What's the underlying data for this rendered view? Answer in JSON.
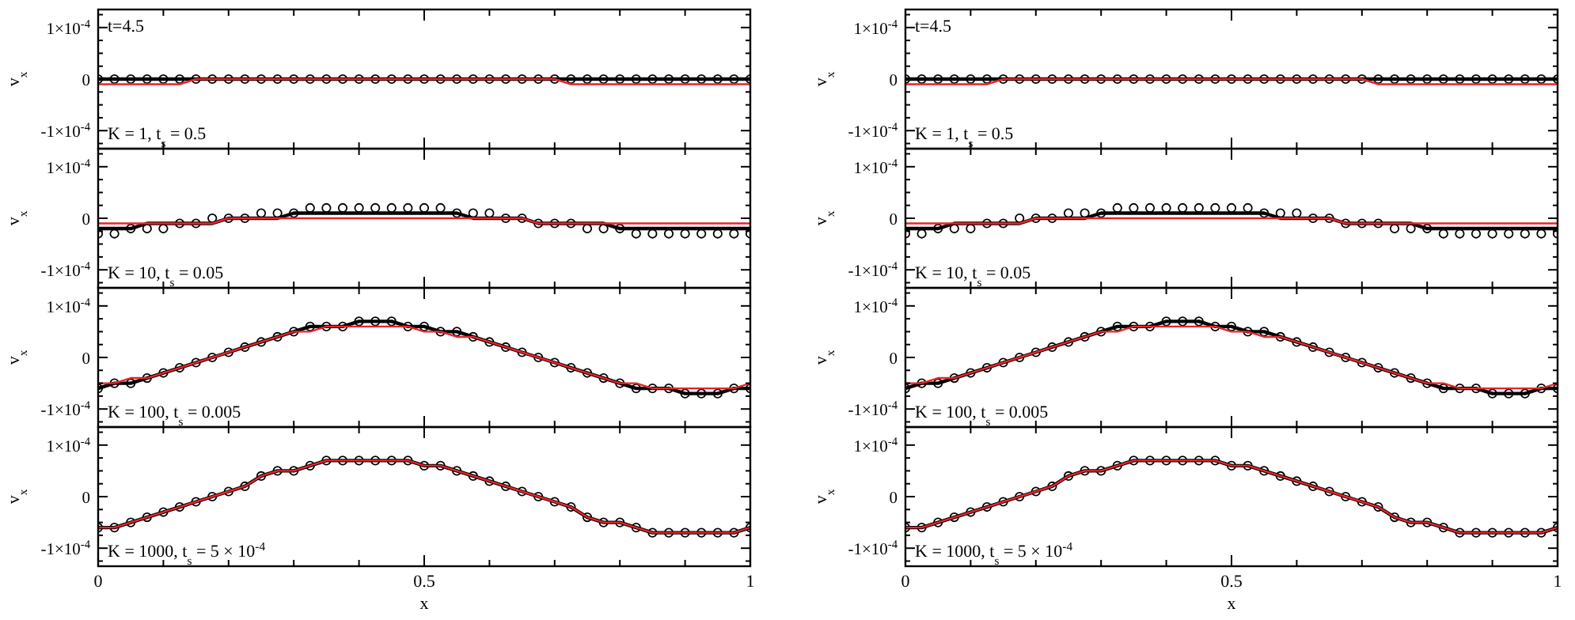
{
  "chart_data": [
    {
      "type": "line",
      "ylabel": "v$_{x}$",
      "annotations": [
        "t=4.5",
        "K = 1, t$_{s}$ = 0.5"
      ],
      "tick_labels": "y",
      "xlim": [
        0,
        1
      ],
      "ylim": [
        -0.000135,
        0.000135
      ],
      "xticks": [
        0,
        {
          "value": 0.1,
          "label": null
        },
        {
          "value": 0.2,
          "label": null
        },
        {
          "value": 0.3,
          "label": null
        },
        {
          "value": 0.4,
          "label": null
        },
        0.5,
        {
          "value": 0.6,
          "label": null
        },
        {
          "value": 0.7,
          "label": null
        },
        {
          "value": 0.8,
          "label": null
        },
        {
          "value": 0.9,
          "label": null
        },
        1
      ],
      "yticks": [
        {
          "value": -0.000125,
          "label": null
        },
        {
          "value": -0.0001,
          "label": "-1×10$^{-4}$"
        },
        {
          "value": -7.5e-05,
          "label": null
        },
        {
          "value": -5e-05,
          "label": null
        },
        {
          "value": -2.5e-05,
          "label": null
        },
        {
          "value": 0,
          "label": "0"
        },
        {
          "value": 2.5e-05,
          "label": null
        },
        {
          "value": 5e-05,
          "label": null
        },
        {
          "value": 7.5e-05,
          "label": null
        },
        {
          "value": 0.0001,
          "label": "1×10$^{-4}$"
        },
        {
          "value": 0.000125,
          "label": null
        }
      ],
      "x": [
        0,
        0.025,
        0.05,
        0.075,
        0.1,
        0.125,
        0.15,
        0.175,
        0.2,
        0.225,
        0.25,
        0.275,
        0.3,
        0.325,
        0.35,
        0.375,
        0.4,
        0.425,
        0.45,
        0.475,
        0.5,
        0.525,
        0.55,
        0.575,
        0.6,
        0.625,
        0.65,
        0.675,
        0.7,
        0.725,
        0.75,
        0.775,
        0.8,
        0.825,
        0.85,
        0.875,
        0.9,
        0.925,
        0.95,
        0.975,
        1
      ],
      "series": [
        {
          "type": "scatter",
          "marker": "circle",
          "color": "#000000",
          "values": [
            0,
            0,
            0,
            0,
            0,
            0,
            0,
            0,
            0,
            0,
            0,
            0,
            0,
            0,
            0,
            0,
            0,
            0,
            0,
            0,
            0,
            0,
            0,
            0,
            0,
            0,
            0,
            0,
            0,
            0,
            0,
            0,
            0,
            0,
            0,
            0,
            0,
            0,
            0,
            0,
            0
          ]
        },
        {
          "type": "line",
          "color": "#000000",
          "values": [
            0,
            0,
            0,
            0,
            0,
            0,
            0,
            0,
            0,
            0,
            0,
            0,
            0,
            0,
            0,
            0,
            0,
            0,
            0,
            0,
            0,
            0,
            0,
            0,
            0,
            0,
            0,
            0,
            0,
            0,
            0,
            0,
            0,
            0,
            0,
            0,
            0,
            0,
            0,
            0,
            0
          ]
        },
        {
          "type": "line",
          "color": "#e8242b",
          "values": [
            -1e-05,
            -1e-05,
            -1e-05,
            -1e-05,
            -1e-05,
            -1e-05,
            0,
            0,
            0,
            0,
            0,
            0,
            0,
            0,
            0,
            0,
            0,
            0,
            0,
            0,
            0,
            0,
            0,
            0,
            0,
            0,
            0,
            0,
            0,
            -1e-05,
            -1e-05,
            -1e-05,
            -1e-05,
            -1e-05,
            -1e-05,
            -1e-05,
            -1e-05,
            -1e-05,
            -1e-05,
            -1e-05,
            -1e-05
          ]
        }
      ]
    },
    {
      "type": "line",
      "ylabel": "v$_{x}$",
      "annotations": [
        "t=4.5",
        "K = 1, t$_{s}$ = 0.5"
      ],
      "tick_labels": "y",
      "xlim": [
        0,
        1
      ],
      "ylim": [
        -0.000135,
        0.000135
      ],
      "xticks": [
        0,
        {
          "value": 0.1,
          "label": null
        },
        {
          "value": 0.2,
          "label": null
        },
        {
          "value": 0.3,
          "label": null
        },
        {
          "value": 0.4,
          "label": null
        },
        0.5,
        {
          "value": 0.6,
          "label": null
        },
        {
          "value": 0.7,
          "label": null
        },
        {
          "value": 0.8,
          "label": null
        },
        {
          "value": 0.9,
          "label": null
        },
        1
      ],
      "yticks": [
        {
          "value": -0.000125,
          "label": null
        },
        {
          "value": -0.0001,
          "label": "-1×10$^{-4}$"
        },
        {
          "value": -7.5e-05,
          "label": null
        },
        {
          "value": -5e-05,
          "label": null
        },
        {
          "value": -2.5e-05,
          "label": null
        },
        {
          "value": 0,
          "label": "0"
        },
        {
          "value": 2.5e-05,
          "label": null
        },
        {
          "value": 5e-05,
          "label": null
        },
        {
          "value": 7.5e-05,
          "label": null
        },
        {
          "value": 0.0001,
          "label": "1×10$^{-4}$"
        },
        {
          "value": 0.000125,
          "label": null
        }
      ],
      "x": [
        0,
        0.025,
        0.05,
        0.075,
        0.1,
        0.125,
        0.15,
        0.175,
        0.2,
        0.225,
        0.25,
        0.275,
        0.3,
        0.325,
        0.35,
        0.375,
        0.4,
        0.425,
        0.45,
        0.475,
        0.5,
        0.525,
        0.55,
        0.575,
        0.6,
        0.625,
        0.65,
        0.675,
        0.7,
        0.725,
        0.75,
        0.775,
        0.8,
        0.825,
        0.85,
        0.875,
        0.9,
        0.925,
        0.95,
        0.975,
        1
      ],
      "series": [
        {
          "type": "scatter",
          "marker": "circle",
          "color": "#000000",
          "values": [
            0,
            0,
            0,
            0,
            0,
            0,
            0,
            0,
            0,
            0,
            0,
            0,
            0,
            0,
            0,
            0,
            0,
            0,
            0,
            0,
            0,
            0,
            0,
            0,
            0,
            0,
            0,
            0,
            0,
            0,
            0,
            0,
            0,
            0,
            0,
            0,
            0,
            0,
            0,
            0,
            0
          ]
        },
        {
          "type": "line",
          "color": "#000000",
          "values": [
            0,
            0,
            0,
            0,
            0,
            0,
            0,
            0,
            0,
            0,
            0,
            0,
            0,
            0,
            0,
            0,
            0,
            0,
            0,
            0,
            0,
            0,
            0,
            0,
            0,
            0,
            0,
            0,
            0,
            0,
            0,
            0,
            0,
            0,
            0,
            0,
            0,
            0,
            0,
            0,
            0
          ]
        },
        {
          "type": "line",
          "color": "#e8242b",
          "values": [
            -1e-05,
            -1e-05,
            -1e-05,
            -1e-05,
            -1e-05,
            -1e-05,
            0,
            0,
            0,
            0,
            0,
            0,
            0,
            0,
            0,
            0,
            0,
            0,
            0,
            0,
            0,
            0,
            0,
            0,
            0,
            0,
            0,
            0,
            0,
            -1e-05,
            -1e-05,
            -1e-05,
            -1e-05,
            -1e-05,
            -1e-05,
            -1e-05,
            -1e-05,
            -1e-05,
            -1e-05,
            -1e-05,
            -1e-05
          ]
        }
      ]
    },
    {
      "type": "line",
      "ylabel": "v$_{x}$",
      "annotations": [
        "K = 10, t$_{s}$ = 0.05"
      ],
      "tick_labels": "y",
      "xlim": [
        0,
        1
      ],
      "ylim": [
        -0.000135,
        0.000135
      ],
      "xticks": [
        0,
        {
          "value": 0.1,
          "label": null
        },
        {
          "value": 0.2,
          "label": null
        },
        {
          "value": 0.3,
          "label": null
        },
        {
          "value": 0.4,
          "label": null
        },
        0.5,
        {
          "value": 0.6,
          "label": null
        },
        {
          "value": 0.7,
          "label": null
        },
        {
          "value": 0.8,
          "label": null
        },
        {
          "value": 0.9,
          "label": null
        },
        1
      ],
      "yticks": [
        {
          "value": -0.000125,
          "label": null
        },
        {
          "value": -0.0001,
          "label": "-1×10$^{-4}$"
        },
        {
          "value": -7.5e-05,
          "label": null
        },
        {
          "value": -5e-05,
          "label": null
        },
        {
          "value": -2.5e-05,
          "label": null
        },
        {
          "value": 0,
          "label": "0"
        },
        {
          "value": 2.5e-05,
          "label": null
        },
        {
          "value": 5e-05,
          "label": null
        },
        {
          "value": 7.5e-05,
          "label": null
        },
        {
          "value": 0.0001,
          "label": "1×10$^{-4}$"
        },
        {
          "value": 0.000125,
          "label": null
        }
      ],
      "x": [
        0,
        0.025,
        0.05,
        0.075,
        0.1,
        0.125,
        0.15,
        0.175,
        0.2,
        0.225,
        0.25,
        0.275,
        0.3,
        0.325,
        0.35,
        0.375,
        0.4,
        0.425,
        0.45,
        0.475,
        0.5,
        0.525,
        0.55,
        0.575,
        0.6,
        0.625,
        0.65,
        0.675,
        0.7,
        0.725,
        0.75,
        0.775,
        0.8,
        0.825,
        0.85,
        0.875,
        0.9,
        0.925,
        0.95,
        0.975,
        1
      ],
      "series": [
        {
          "type": "scatter",
          "marker": "circle",
          "color": "#000000",
          "values": [
            -3e-05,
            -3e-05,
            -2e-05,
            -2e-05,
            -2e-05,
            -1e-05,
            -1e-05,
            0,
            0,
            0,
            1e-05,
            1e-05,
            1e-05,
            2e-05,
            2e-05,
            2e-05,
            2e-05,
            2e-05,
            2e-05,
            2e-05,
            2e-05,
            2e-05,
            1e-05,
            1e-05,
            1e-05,
            0,
            0,
            -1e-05,
            -1e-05,
            -1e-05,
            -2e-05,
            -2e-05,
            -2e-05,
            -3e-05,
            -3e-05,
            -3e-05,
            -3e-05,
            -3e-05,
            -3e-05,
            -3e-05,
            -3e-05
          ]
        },
        {
          "type": "line",
          "color": "#000000",
          "values": [
            -2e-05,
            -2e-05,
            -2e-05,
            -1e-05,
            -1e-05,
            -1e-05,
            -1e-05,
            -1e-05,
            0,
            0,
            0,
            0,
            1e-05,
            1e-05,
            1e-05,
            1e-05,
            1e-05,
            1e-05,
            1e-05,
            1e-05,
            1e-05,
            1e-05,
            1e-05,
            0,
            0,
            0,
            0,
            -1e-05,
            -1e-05,
            -1e-05,
            -1e-05,
            -1e-05,
            -2e-05,
            -2e-05,
            -2e-05,
            -2e-05,
            -2e-05,
            -2e-05,
            -2e-05,
            -2e-05,
            -2e-05
          ]
        },
        {
          "type": "line",
          "color": "#e8242b",
          "values": [
            -1e-05,
            -1e-05,
            -1e-05,
            -1e-05,
            -1e-05,
            -1e-05,
            -1e-05,
            -1e-05,
            0,
            0,
            0,
            0,
            0,
            0,
            0,
            0,
            0,
            0,
            0,
            0,
            0,
            0,
            0,
            0,
            0,
            0,
            0,
            -1e-05,
            -1e-05,
            -1e-05,
            -1e-05,
            -1e-05,
            -1e-05,
            -1e-05,
            -1e-05,
            -1e-05,
            -1e-05,
            -1e-05,
            -1e-05,
            -1e-05,
            -1e-05
          ]
        }
      ]
    },
    {
      "type": "line",
      "ylabel": "v$_{x}$",
      "annotations": [
        "K = 10, t$_{s}$ = 0.05"
      ],
      "tick_labels": "y",
      "xlim": [
        0,
        1
      ],
      "ylim": [
        -0.000135,
        0.000135
      ],
      "xticks": [
        0,
        {
          "value": 0.1,
          "label": null
        },
        {
          "value": 0.2,
          "label": null
        },
        {
          "value": 0.3,
          "label": null
        },
        {
          "value": 0.4,
          "label": null
        },
        0.5,
        {
          "value": 0.6,
          "label": null
        },
        {
          "value": 0.7,
          "label": null
        },
        {
          "value": 0.8,
          "label": null
        },
        {
          "value": 0.9,
          "label": null
        },
        1
      ],
      "yticks": [
        {
          "value": -0.000125,
          "label": null
        },
        {
          "value": -0.0001,
          "label": "-1×10$^{-4}$"
        },
        {
          "value": -7.5e-05,
          "label": null
        },
        {
          "value": -5e-05,
          "label": null
        },
        {
          "value": -2.5e-05,
          "label": null
        },
        {
          "value": 0,
          "label": "0"
        },
        {
          "value": 2.5e-05,
          "label": null
        },
        {
          "value": 5e-05,
          "label": null
        },
        {
          "value": 7.5e-05,
          "label": null
        },
        {
          "value": 0.0001,
          "label": "1×10$^{-4}$"
        },
        {
          "value": 0.000125,
          "label": null
        }
      ],
      "x": [
        0,
        0.025,
        0.05,
        0.075,
        0.1,
        0.125,
        0.15,
        0.175,
        0.2,
        0.225,
        0.25,
        0.275,
        0.3,
        0.325,
        0.35,
        0.375,
        0.4,
        0.425,
        0.45,
        0.475,
        0.5,
        0.525,
        0.55,
        0.575,
        0.6,
        0.625,
        0.65,
        0.675,
        0.7,
        0.725,
        0.75,
        0.775,
        0.8,
        0.825,
        0.85,
        0.875,
        0.9,
        0.925,
        0.95,
        0.975,
        1
      ],
      "series": [
        {
          "type": "scatter",
          "marker": "circle",
          "color": "#000000",
          "values": [
            -3e-05,
            -3e-05,
            -2e-05,
            -2e-05,
            -2e-05,
            -1e-05,
            -1e-05,
            0,
            0,
            0,
            1e-05,
            1e-05,
            1e-05,
            2e-05,
            2e-05,
            2e-05,
            2e-05,
            2e-05,
            2e-05,
            2e-05,
            2e-05,
            2e-05,
            1e-05,
            1e-05,
            1e-05,
            0,
            0,
            -1e-05,
            -1e-05,
            -1e-05,
            -2e-05,
            -2e-05,
            -2e-05,
            -3e-05,
            -3e-05,
            -3e-05,
            -3e-05,
            -3e-05,
            -3e-05,
            -3e-05,
            -3e-05
          ]
        },
        {
          "type": "line",
          "color": "#000000",
          "values": [
            -2e-05,
            -2e-05,
            -2e-05,
            -1e-05,
            -1e-05,
            -1e-05,
            -1e-05,
            -1e-05,
            0,
            0,
            0,
            0,
            1e-05,
            1e-05,
            1e-05,
            1e-05,
            1e-05,
            1e-05,
            1e-05,
            1e-05,
            1e-05,
            1e-05,
            1e-05,
            0,
            0,
            0,
            0,
            -1e-05,
            -1e-05,
            -1e-05,
            -1e-05,
            -1e-05,
            -2e-05,
            -2e-05,
            -2e-05,
            -2e-05,
            -2e-05,
            -2e-05,
            -2e-05,
            -2e-05,
            -2e-05
          ]
        },
        {
          "type": "line",
          "color": "#e8242b",
          "values": [
            -1e-05,
            -1e-05,
            -1e-05,
            -1e-05,
            -1e-05,
            -1e-05,
            -1e-05,
            -1e-05,
            0,
            0,
            0,
            0,
            0,
            0,
            0,
            0,
            0,
            0,
            0,
            0,
            0,
            0,
            0,
            0,
            0,
            0,
            0,
            -1e-05,
            -1e-05,
            -1e-05,
            -1e-05,
            -1e-05,
            -1e-05,
            -1e-05,
            -1e-05,
            -1e-05,
            -1e-05,
            -1e-05,
            -1e-05,
            -1e-05,
            -1e-05
          ]
        }
      ]
    },
    {
      "type": "line",
      "ylabel": "v$_{x}$",
      "annotations": [
        "K = 100, t$_{s}$ = 0.005"
      ],
      "tick_labels": "y",
      "xlim": [
        0,
        1
      ],
      "ylim": [
        -0.000135,
        0.000135
      ],
      "xticks": [
        0,
        {
          "value": 0.1,
          "label": null
        },
        {
          "value": 0.2,
          "label": null
        },
        {
          "value": 0.3,
          "label": null
        },
        {
          "value": 0.4,
          "label": null
        },
        0.5,
        {
          "value": 0.6,
          "label": null
        },
        {
          "value": 0.7,
          "label": null
        },
        {
          "value": 0.8,
          "label": null
        },
        {
          "value": 0.9,
          "label": null
        },
        1
      ],
      "yticks": [
        {
          "value": -0.000125,
          "label": null
        },
        {
          "value": -0.0001,
          "label": "-1×10$^{-4}$"
        },
        {
          "value": -7.5e-05,
          "label": null
        },
        {
          "value": -5e-05,
          "label": null
        },
        {
          "value": -2.5e-05,
          "label": null
        },
        {
          "value": 0,
          "label": "0"
        },
        {
          "value": 2.5e-05,
          "label": null
        },
        {
          "value": 5e-05,
          "label": null
        },
        {
          "value": 7.5e-05,
          "label": null
        },
        {
          "value": 0.0001,
          "label": "1×10$^{-4}$"
        },
        {
          "value": 0.000125,
          "label": null
        }
      ],
      "x": [
        0,
        0.025,
        0.05,
        0.075,
        0.1,
        0.125,
        0.15,
        0.175,
        0.2,
        0.225,
        0.25,
        0.275,
        0.3,
        0.325,
        0.35,
        0.375,
        0.4,
        0.425,
        0.45,
        0.475,
        0.5,
        0.525,
        0.55,
        0.575,
        0.6,
        0.625,
        0.65,
        0.675,
        0.7,
        0.725,
        0.75,
        0.775,
        0.8,
        0.825,
        0.85,
        0.875,
        0.9,
        0.925,
        0.95,
        0.975,
        1
      ],
      "series": [
        {
          "type": "scatter",
          "marker": "circle",
          "color": "#000000",
          "values": [
            -6e-05,
            -5e-05,
            -5e-05,
            -4e-05,
            -3e-05,
            -2e-05,
            -1e-05,
            0,
            1e-05,
            2e-05,
            3e-05,
            4e-05,
            5e-05,
            6e-05,
            6e-05,
            6e-05,
            7e-05,
            7e-05,
            7e-05,
            6e-05,
            6e-05,
            5e-05,
            5e-05,
            4e-05,
            3e-05,
            2e-05,
            1e-05,
            0,
            -1e-05,
            -2e-05,
            -3e-05,
            -4e-05,
            -5e-05,
            -6e-05,
            -6e-05,
            -6e-05,
            -7e-05,
            -7e-05,
            -7e-05,
            -6e-05,
            -6e-05
          ]
        },
        {
          "type": "line",
          "color": "#000000",
          "values": [
            -6e-05,
            -5e-05,
            -5e-05,
            -4e-05,
            -3e-05,
            -2e-05,
            -1e-05,
            0,
            1e-05,
            2e-05,
            3e-05,
            4e-05,
            5e-05,
            6e-05,
            6e-05,
            6e-05,
            7e-05,
            7e-05,
            7e-05,
            6e-05,
            6e-05,
            5e-05,
            5e-05,
            4e-05,
            3e-05,
            2e-05,
            1e-05,
            0,
            -1e-05,
            -2e-05,
            -3e-05,
            -4e-05,
            -5e-05,
            -6e-05,
            -6e-05,
            -6e-05,
            -7e-05,
            -7e-05,
            -7e-05,
            -6e-05,
            -6e-05
          ]
        },
        {
          "type": "line",
          "color": "#e8242b",
          "values": [
            -5e-05,
            -5e-05,
            -4e-05,
            -4e-05,
            -3e-05,
            -2e-05,
            -1e-05,
            0,
            1e-05,
            2e-05,
            3e-05,
            4e-05,
            5e-05,
            5e-05,
            6e-05,
            6e-05,
            6e-05,
            6e-05,
            6e-05,
            6e-05,
            5e-05,
            5e-05,
            4e-05,
            4e-05,
            3e-05,
            2e-05,
            1e-05,
            0,
            -1e-05,
            -2e-05,
            -3e-05,
            -4e-05,
            -5e-05,
            -5e-05,
            -6e-05,
            -6e-05,
            -6e-05,
            -6e-05,
            -6e-05,
            -6e-05,
            -5e-05
          ]
        }
      ]
    },
    {
      "type": "line",
      "ylabel": "v$_{x}$",
      "annotations": [
        "K = 100, t$_{s}$ = 0.005"
      ],
      "tick_labels": "y",
      "xlim": [
        0,
        1
      ],
      "ylim": [
        -0.000135,
        0.000135
      ],
      "xticks": [
        0,
        {
          "value": 0.1,
          "label": null
        },
        {
          "value": 0.2,
          "label": null
        },
        {
          "value": 0.3,
          "label": null
        },
        {
          "value": 0.4,
          "label": null
        },
        0.5,
        {
          "value": 0.6,
          "label": null
        },
        {
          "value": 0.7,
          "label": null
        },
        {
          "value": 0.8,
          "label": null
        },
        {
          "value": 0.9,
          "label": null
        },
        1
      ],
      "yticks": [
        {
          "value": -0.000125,
          "label": null
        },
        {
          "value": -0.0001,
          "label": "-1×10$^{-4}$"
        },
        {
          "value": -7.5e-05,
          "label": null
        },
        {
          "value": -5e-05,
          "label": null
        },
        {
          "value": -2.5e-05,
          "label": null
        },
        {
          "value": 0,
          "label": "0"
        },
        {
          "value": 2.5e-05,
          "label": null
        },
        {
          "value": 5e-05,
          "label": null
        },
        {
          "value": 7.5e-05,
          "label": null
        },
        {
          "value": 0.0001,
          "label": "1×10$^{-4}$"
        },
        {
          "value": 0.000125,
          "label": null
        }
      ],
      "x": [
        0,
        0.025,
        0.05,
        0.075,
        0.1,
        0.125,
        0.15,
        0.175,
        0.2,
        0.225,
        0.25,
        0.275,
        0.3,
        0.325,
        0.35,
        0.375,
        0.4,
        0.425,
        0.45,
        0.475,
        0.5,
        0.525,
        0.55,
        0.575,
        0.6,
        0.625,
        0.65,
        0.675,
        0.7,
        0.725,
        0.75,
        0.775,
        0.8,
        0.825,
        0.85,
        0.875,
        0.9,
        0.925,
        0.95,
        0.975,
        1
      ],
      "series": [
        {
          "type": "scatter",
          "marker": "circle",
          "color": "#000000",
          "values": [
            -6e-05,
            -5e-05,
            -5e-05,
            -4e-05,
            -3e-05,
            -2e-05,
            -1e-05,
            0,
            1e-05,
            2e-05,
            3e-05,
            4e-05,
            5e-05,
            6e-05,
            6e-05,
            6e-05,
            7e-05,
            7e-05,
            7e-05,
            6e-05,
            6e-05,
            5e-05,
            5e-05,
            4e-05,
            3e-05,
            2e-05,
            1e-05,
            0,
            -1e-05,
            -2e-05,
            -3e-05,
            -4e-05,
            -5e-05,
            -6e-05,
            -6e-05,
            -6e-05,
            -7e-05,
            -7e-05,
            -7e-05,
            -6e-05,
            -6e-05
          ]
        },
        {
          "type": "line",
          "color": "#000000",
          "values": [
            -6e-05,
            -5e-05,
            -5e-05,
            -4e-05,
            -3e-05,
            -2e-05,
            -1e-05,
            0,
            1e-05,
            2e-05,
            3e-05,
            4e-05,
            5e-05,
            6e-05,
            6e-05,
            6e-05,
            7e-05,
            7e-05,
            7e-05,
            6e-05,
            6e-05,
            5e-05,
            5e-05,
            4e-05,
            3e-05,
            2e-05,
            1e-05,
            0,
            -1e-05,
            -2e-05,
            -3e-05,
            -4e-05,
            -5e-05,
            -6e-05,
            -6e-05,
            -6e-05,
            -7e-05,
            -7e-05,
            -7e-05,
            -6e-05,
            -6e-05
          ]
        },
        {
          "type": "line",
          "color": "#e8242b",
          "values": [
            -5e-05,
            -5e-05,
            -4e-05,
            -4e-05,
            -3e-05,
            -2e-05,
            -1e-05,
            0,
            1e-05,
            2e-05,
            3e-05,
            4e-05,
            5e-05,
            5e-05,
            6e-05,
            6e-05,
            6e-05,
            6e-05,
            6e-05,
            6e-05,
            5e-05,
            5e-05,
            4e-05,
            4e-05,
            3e-05,
            2e-05,
            1e-05,
            0,
            -1e-05,
            -2e-05,
            -3e-05,
            -4e-05,
            -5e-05,
            -5e-05,
            -6e-05,
            -6e-05,
            -6e-05,
            -6e-05,
            -6e-05,
            -6e-05,
            -5e-05
          ]
        }
      ]
    },
    {
      "type": "line",
      "xlabel": "x",
      "ylabel": "v$_{x}$",
      "annotations": [
        "K = 1000, t$_{s}$ = 5 × 10$^{-4}$"
      ],
      "xlim": [
        0,
        1
      ],
      "ylim": [
        -0.000135,
        0.000135
      ],
      "xticks": [
        0,
        {
          "value": 0.1,
          "label": null
        },
        {
          "value": 0.2,
          "label": null
        },
        {
          "value": 0.3,
          "label": null
        },
        {
          "value": 0.4,
          "label": null
        },
        0.5,
        {
          "value": 0.6,
          "label": null
        },
        {
          "value": 0.7,
          "label": null
        },
        {
          "value": 0.8,
          "label": null
        },
        {
          "value": 0.9,
          "label": null
        },
        1
      ],
      "yticks": [
        {
          "value": -0.000125,
          "label": null
        },
        {
          "value": -0.0001,
          "label": "-1×10$^{-4}$"
        },
        {
          "value": -7.5e-05,
          "label": null
        },
        {
          "value": -5e-05,
          "label": null
        },
        {
          "value": -2.5e-05,
          "label": null
        },
        {
          "value": 0,
          "label": "0"
        },
        {
          "value": 2.5e-05,
          "label": null
        },
        {
          "value": 5e-05,
          "label": null
        },
        {
          "value": 7.5e-05,
          "label": null
        },
        {
          "value": 0.0001,
          "label": "1×10$^{-4}$"
        },
        {
          "value": 0.000125,
          "label": null
        }
      ],
      "x": [
        0,
        0.025,
        0.05,
        0.075,
        0.1,
        0.125,
        0.15,
        0.175,
        0.2,
        0.225,
        0.25,
        0.275,
        0.3,
        0.325,
        0.35,
        0.375,
        0.4,
        0.425,
        0.45,
        0.475,
        0.5,
        0.525,
        0.55,
        0.575,
        0.6,
        0.625,
        0.65,
        0.675,
        0.7,
        0.725,
        0.75,
        0.775,
        0.8,
        0.825,
        0.85,
        0.875,
        0.9,
        0.925,
        0.95,
        0.975,
        1
      ],
      "series": [
        {
          "type": "scatter",
          "marker": "circle",
          "color": "#000000",
          "values": [
            -6e-05,
            -6e-05,
            -5e-05,
            -4e-05,
            -3e-05,
            -2e-05,
            -1e-05,
            0,
            1e-05,
            2e-05,
            4e-05,
            5e-05,
            5e-05,
            6e-05,
            7e-05,
            7e-05,
            7e-05,
            7e-05,
            7e-05,
            7e-05,
            6e-05,
            6e-05,
            5e-05,
            4e-05,
            3e-05,
            2e-05,
            1e-05,
            0,
            -1e-05,
            -2e-05,
            -4e-05,
            -5e-05,
            -5e-05,
            -6e-05,
            -7e-05,
            -7e-05,
            -7e-05,
            -7e-05,
            -7e-05,
            -7e-05,
            -6e-05
          ]
        },
        {
          "type": "line",
          "color": "#000000",
          "values": [
            -6e-05,
            -6e-05,
            -5e-05,
            -4e-05,
            -3e-05,
            -2e-05,
            -1e-05,
            0,
            1e-05,
            2e-05,
            4e-05,
            5e-05,
            5e-05,
            6e-05,
            7e-05,
            7e-05,
            7e-05,
            7e-05,
            7e-05,
            7e-05,
            6e-05,
            6e-05,
            5e-05,
            4e-05,
            3e-05,
            2e-05,
            1e-05,
            0,
            -1e-05,
            -2e-05,
            -4e-05,
            -5e-05,
            -5e-05,
            -6e-05,
            -7e-05,
            -7e-05,
            -7e-05,
            -7e-05,
            -7e-05,
            -7e-05,
            -6e-05
          ]
        },
        {
          "type": "line",
          "color": "#e8242b",
          "values": [
            -6e-05,
            -6e-05,
            -5e-05,
            -4e-05,
            -3e-05,
            -2e-05,
            -1e-05,
            0,
            1e-05,
            2e-05,
            4e-05,
            5e-05,
            5e-05,
            6e-05,
            7e-05,
            7e-05,
            7e-05,
            7e-05,
            7e-05,
            7e-05,
            6e-05,
            6e-05,
            5e-05,
            4e-05,
            3e-05,
            2e-05,
            1e-05,
            0,
            -1e-05,
            -2e-05,
            -4e-05,
            -5e-05,
            -5e-05,
            -6e-05,
            -7e-05,
            -7e-05,
            -7e-05,
            -7e-05,
            -7e-05,
            -7e-05,
            -6e-05
          ]
        }
      ]
    },
    {
      "type": "line",
      "xlabel": "x",
      "ylabel": "v$_{x}$",
      "annotations": [
        "K = 1000, t$_{s}$ = 5 × 10$^{-4}$"
      ],
      "xlim": [
        0,
        1
      ],
      "ylim": [
        -0.000135,
        0.000135
      ],
      "xticks": [
        0,
        {
          "value": 0.1,
          "label": null
        },
        {
          "value": 0.2,
          "label": null
        },
        {
          "value": 0.3,
          "label": null
        },
        {
          "value": 0.4,
          "label": null
        },
        0.5,
        {
          "value": 0.6,
          "label": null
        },
        {
          "value": 0.7,
          "label": null
        },
        {
          "value": 0.8,
          "label": null
        },
        {
          "value": 0.9,
          "label": null
        },
        1
      ],
      "yticks": [
        {
          "value": -0.000125,
          "label": null
        },
        {
          "value": -0.0001,
          "label": "-1×10$^{-4}$"
        },
        {
          "value": -7.5e-05,
          "label": null
        },
        {
          "value": -5e-05,
          "label": null
        },
        {
          "value": -2.5e-05,
          "label": null
        },
        {
          "value": 0,
          "label": "0"
        },
        {
          "value": 2.5e-05,
          "label": null
        },
        {
          "value": 5e-05,
          "label": null
        },
        {
          "value": 7.5e-05,
          "label": null
        },
        {
          "value": 0.0001,
          "label": "1×10$^{-4}$"
        },
        {
          "value": 0.000125,
          "label": null
        }
      ],
      "x": [
        0,
        0.025,
        0.05,
        0.075,
        0.1,
        0.125,
        0.15,
        0.175,
        0.2,
        0.225,
        0.25,
        0.275,
        0.3,
        0.325,
        0.35,
        0.375,
        0.4,
        0.425,
        0.45,
        0.475,
        0.5,
        0.525,
        0.55,
        0.575,
        0.6,
        0.625,
        0.65,
        0.675,
        0.7,
        0.725,
        0.75,
        0.775,
        0.8,
        0.825,
        0.85,
        0.875,
        0.9,
        0.925,
        0.95,
        0.975,
        1
      ],
      "series": [
        {
          "type": "scatter",
          "marker": "circle",
          "color": "#000000",
          "values": [
            -6e-05,
            -6e-05,
            -5e-05,
            -4e-05,
            -3e-05,
            -2e-05,
            -1e-05,
            0,
            1e-05,
            2e-05,
            4e-05,
            5e-05,
            5e-05,
            6e-05,
            7e-05,
            7e-05,
            7e-05,
            7e-05,
            7e-05,
            7e-05,
            6e-05,
            6e-05,
            5e-05,
            4e-05,
            3e-05,
            2e-05,
            1e-05,
            0,
            -1e-05,
            -2e-05,
            -4e-05,
            -5e-05,
            -5e-05,
            -6e-05,
            -7e-05,
            -7e-05,
            -7e-05,
            -7e-05,
            -7e-05,
            -7e-05,
            -6e-05
          ]
        },
        {
          "type": "line",
          "color": "#000000",
          "values": [
            -6e-05,
            -6e-05,
            -5e-05,
            -4e-05,
            -3e-05,
            -2e-05,
            -1e-05,
            0,
            1e-05,
            2e-05,
            4e-05,
            5e-05,
            5e-05,
            6e-05,
            7e-05,
            7e-05,
            7e-05,
            7e-05,
            7e-05,
            7e-05,
            6e-05,
            6e-05,
            5e-05,
            4e-05,
            3e-05,
            2e-05,
            1e-05,
            0,
            -1e-05,
            -2e-05,
            -4e-05,
            -5e-05,
            -5e-05,
            -6e-05,
            -7e-05,
            -7e-05,
            -7e-05,
            -7e-05,
            -7e-05,
            -7e-05,
            -6e-05
          ]
        },
        {
          "type": "line",
          "color": "#e8242b",
          "values": [
            -6e-05,
            -6e-05,
            -5e-05,
            -4e-05,
            -3e-05,
            -2e-05,
            -1e-05,
            0,
            1e-05,
            2e-05,
            4e-05,
            5e-05,
            5e-05,
            6e-05,
            7e-05,
            7e-05,
            7e-05,
            7e-05,
            7e-05,
            7e-05,
            6e-05,
            6e-05,
            5e-05,
            4e-05,
            3e-05,
            2e-05,
            1e-05,
            0,
            -1e-05,
            -2e-05,
            -4e-05,
            -5e-05,
            -5e-05,
            -6e-05,
            -7e-05,
            -7e-05,
            -7e-05,
            -7e-05,
            -7e-05,
            -7e-05,
            -6e-05
          ]
        }
      ]
    }
  ]
}
